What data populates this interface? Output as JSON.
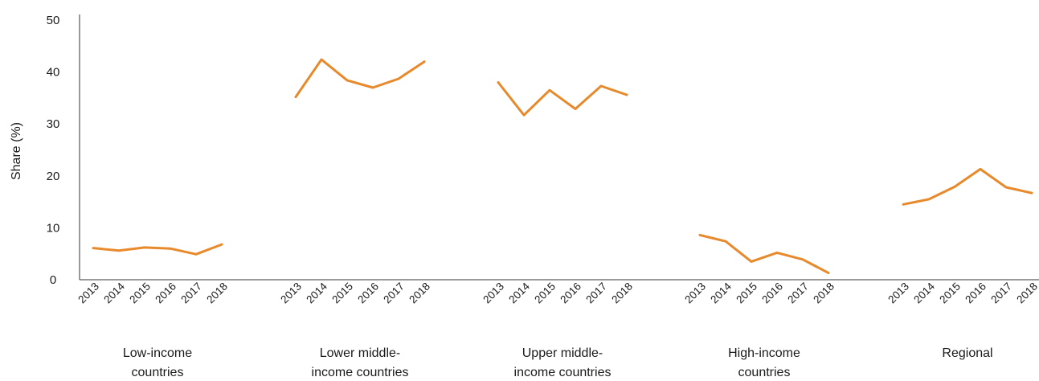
{
  "chart_data": {
    "type": "line",
    "ylabel": "Share (%)",
    "ylim": [
      0,
      50
    ],
    "yticks": [
      "0",
      "10",
      "20",
      "30",
      "40",
      "50"
    ],
    "years": [
      "2013",
      "2014",
      "2015",
      "2016",
      "2017",
      "2018"
    ],
    "line_color": "#e8892b",
    "grid": false,
    "groups": [
      {
        "label_lines": [
          "Low-income",
          "countries"
        ],
        "values": [
          6.1,
          5.6,
          6.2,
          6.0,
          4.9,
          6.8
        ]
      },
      {
        "label_lines": [
          "Lower middle-",
          "income countries"
        ],
        "values": [
          35.2,
          42.4,
          38.4,
          37.0,
          38.7,
          42.0
        ]
      },
      {
        "label_lines": [
          "Upper middle-",
          "income countries"
        ],
        "values": [
          38.0,
          31.7,
          36.5,
          32.9,
          37.3,
          35.6
        ]
      },
      {
        "label_lines": [
          "High-income",
          "countries"
        ],
        "values": [
          8.6,
          7.4,
          3.5,
          5.2,
          3.9,
          1.3
        ]
      },
      {
        "label_lines": [
          "Regional"
        ],
        "values": [
          14.5,
          15.5,
          17.9,
          21.3,
          17.8,
          16.7
        ]
      }
    ]
  }
}
